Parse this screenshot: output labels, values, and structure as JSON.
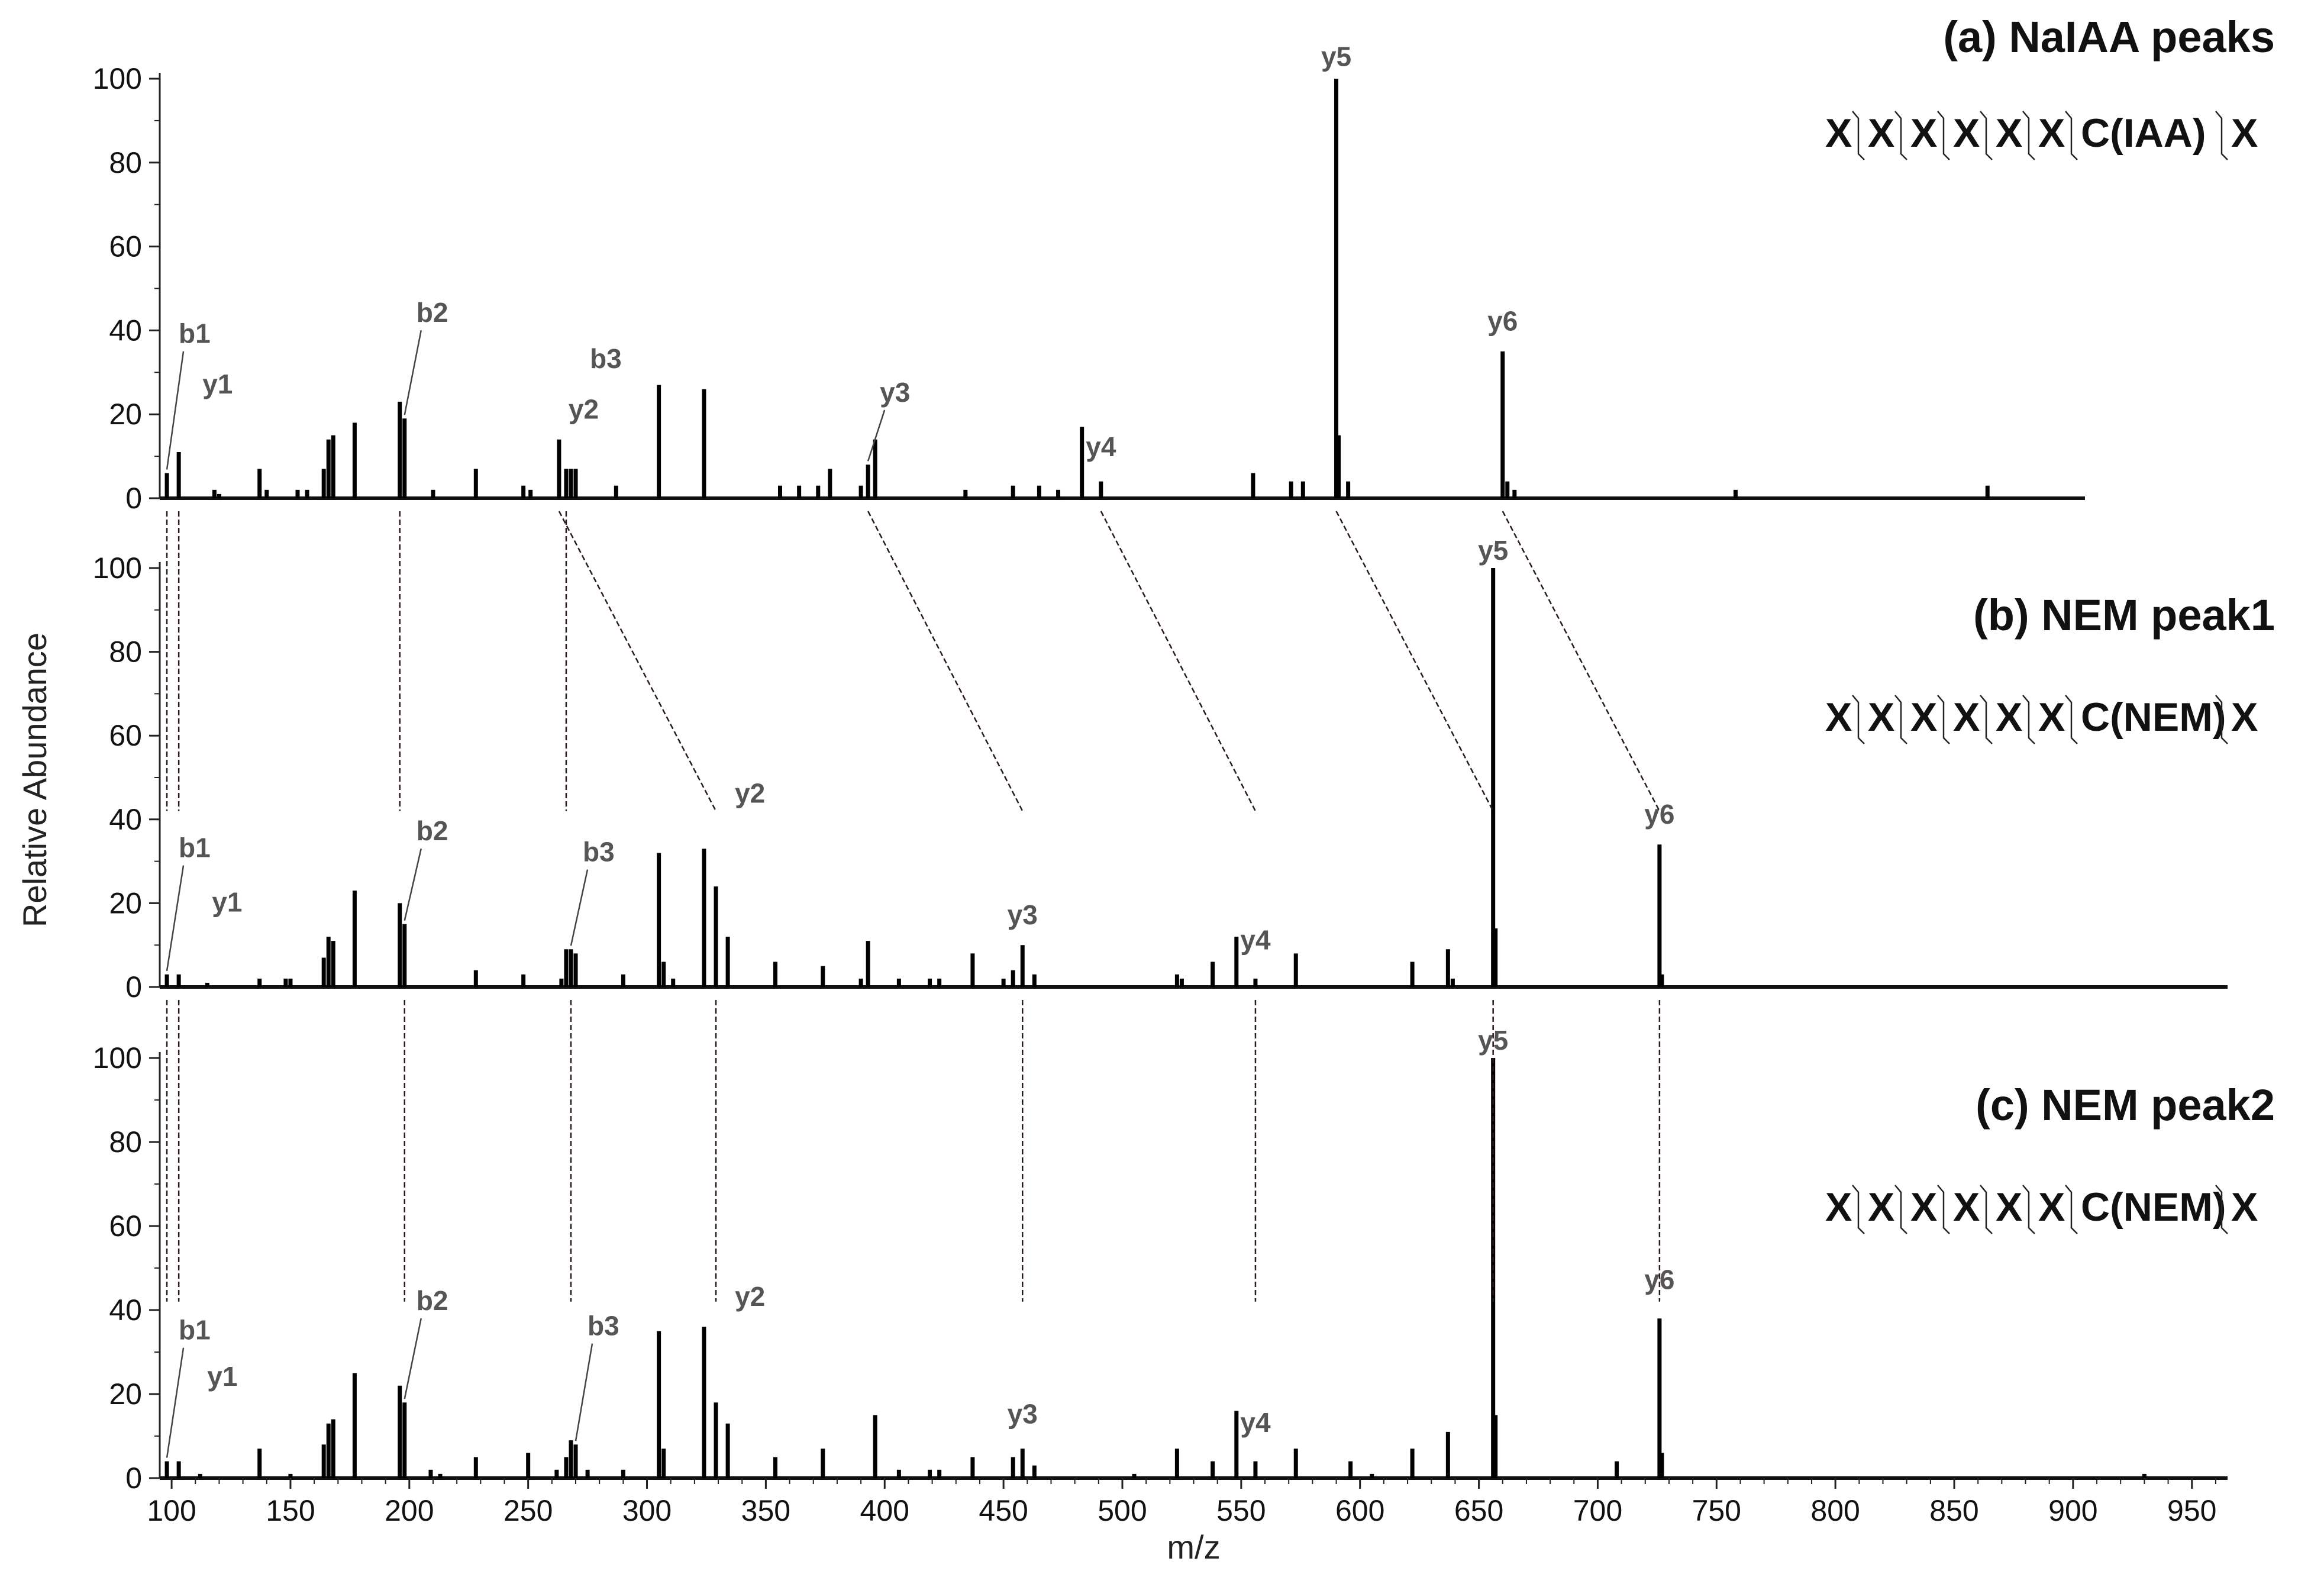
{
  "chart_data": {
    "type": "bar",
    "y_axis_label": "Relative Abundance",
    "x_axis_label": "m/z",
    "xlim": [
      95,
      965
    ],
    "x_ticks": [
      100,
      150,
      200,
      250,
      300,
      350,
      400,
      450,
      500,
      550,
      600,
      650,
      700,
      750,
      800,
      850,
      900,
      950
    ],
    "y_ticks": [
      0,
      20,
      40,
      60,
      80,
      100
    ],
    "ylim": [
      0,
      100
    ],
    "panels": [
      {
        "title": "(a) NaIAA peaks",
        "peptide": [
          "X",
          "X",
          "X",
          "X",
          "X",
          "X",
          "C(IAA)",
          "X"
        ],
        "peaks": [
          [
            98,
            6
          ],
          [
            103,
            11
          ],
          [
            118,
            2
          ],
          [
            120,
            1
          ],
          [
            137,
            7
          ],
          [
            140,
            2
          ],
          [
            153,
            2
          ],
          [
            157,
            2
          ],
          [
            164,
            7
          ],
          [
            166,
            14
          ],
          [
            168,
            15
          ],
          [
            177,
            18
          ],
          [
            196,
            23
          ],
          [
            198,
            19
          ],
          [
            210,
            2
          ],
          [
            228,
            7
          ],
          [
            248,
            3
          ],
          [
            251,
            2
          ],
          [
            263,
            14
          ],
          [
            266,
            7
          ],
          [
            268,
            7
          ],
          [
            270,
            7
          ],
          [
            287,
            3
          ],
          [
            305,
            27
          ],
          [
            324,
            26
          ],
          [
            356,
            3
          ],
          [
            364,
            3
          ],
          [
            372,
            3
          ],
          [
            377,
            7
          ],
          [
            390,
            3
          ],
          [
            393,
            8
          ],
          [
            396,
            14
          ],
          [
            434,
            2
          ],
          [
            454,
            3
          ],
          [
            465,
            3
          ],
          [
            473,
            2
          ],
          [
            483,
            17
          ],
          [
            491,
            4
          ],
          [
            555,
            6
          ],
          [
            571,
            4
          ],
          [
            576,
            4
          ],
          [
            590,
            100
          ],
          [
            591,
            15
          ],
          [
            595,
            4
          ],
          [
            660,
            35
          ],
          [
            662,
            4
          ],
          [
            665,
            2
          ],
          [
            758,
            2
          ],
          [
            864,
            3
          ]
        ],
        "labels": [
          {
            "text": "b1",
            "mz": 98,
            "ytext": 37
          },
          {
            "text": "y1",
            "mz": 108,
            "ytext": 25
          },
          {
            "text": "b2",
            "mz": 198,
            "ytext": 42
          },
          {
            "text": "y2",
            "mz": 262,
            "ytext": 19
          },
          {
            "text": "b3",
            "mz": 271,
            "ytext": 31
          },
          {
            "text": "y3",
            "mz": 393,
            "ytext": 23
          },
          {
            "text": "y4",
            "mz": 491,
            "ytext": 10
          },
          {
            "text": "y5",
            "mz": 590,
            "ytext": 103
          },
          {
            "text": "y6",
            "mz": 660,
            "ytext": 40
          }
        ]
      },
      {
        "title": "(b) NEM peak1",
        "peptide": [
          "X",
          "X",
          "X",
          "X",
          "X",
          "X",
          "C(NEM)",
          "X"
        ],
        "peaks": [
          [
            98,
            3
          ],
          [
            103,
            3
          ],
          [
            115,
            1
          ],
          [
            137,
            2
          ],
          [
            148,
            2
          ],
          [
            150,
            2
          ],
          [
            164,
            7
          ],
          [
            166,
            12
          ],
          [
            168,
            11
          ],
          [
            177,
            23
          ],
          [
            196,
            20
          ],
          [
            198,
            15
          ],
          [
            228,
            4
          ],
          [
            248,
            3
          ],
          [
            264,
            2
          ],
          [
            266,
            9
          ],
          [
            268,
            9
          ],
          [
            270,
            8
          ],
          [
            290,
            3
          ],
          [
            305,
            32
          ],
          [
            307,
            6
          ],
          [
            311,
            2
          ],
          [
            324,
            33
          ],
          [
            329,
            24
          ],
          [
            334,
            12
          ],
          [
            354,
            6
          ],
          [
            374,
            5
          ],
          [
            390,
            2
          ],
          [
            393,
            11
          ],
          [
            406,
            2
          ],
          [
            419,
            2
          ],
          [
            423,
            2
          ],
          [
            437,
            8
          ],
          [
            450,
            2
          ],
          [
            454,
            4
          ],
          [
            458,
            10
          ],
          [
            463,
            3
          ],
          [
            523,
            3
          ],
          [
            525,
            2
          ],
          [
            538,
            6
          ],
          [
            548,
            12
          ],
          [
            556,
            2
          ],
          [
            573,
            8
          ],
          [
            622,
            6
          ],
          [
            637,
            9
          ],
          [
            639,
            2
          ],
          [
            656,
            100
          ],
          [
            657,
            14
          ],
          [
            726,
            34
          ],
          [
            727,
            3
          ]
        ],
        "labels": [
          {
            "text": "b1",
            "mz": 98,
            "ytext": 31
          },
          {
            "text": "y1",
            "mz": 112,
            "ytext": 18
          },
          {
            "text": "b2",
            "mz": 198,
            "ytext": 35
          },
          {
            "text": "b3",
            "mz": 268,
            "ytext": 30
          },
          {
            "text": "y2",
            "mz": 332,
            "ytext": 44
          },
          {
            "text": "y3",
            "mz": 458,
            "ytext": 15
          },
          {
            "text": "y4",
            "mz": 556,
            "ytext": 9
          },
          {
            "text": "y5",
            "mz": 656,
            "ytext": 102
          },
          {
            "text": "y6",
            "mz": 726,
            "ytext": 39
          }
        ]
      },
      {
        "title": "(c) NEM peak2",
        "peptide": [
          "X",
          "X",
          "X",
          "X",
          "X",
          "X",
          "C(NEM)",
          "X"
        ],
        "peaks": [
          [
            98,
            4
          ],
          [
            103,
            4
          ],
          [
            112,
            1
          ],
          [
            137,
            7
          ],
          [
            150,
            1
          ],
          [
            164,
            8
          ],
          [
            166,
            13
          ],
          [
            168,
            14
          ],
          [
            177,
            25
          ],
          [
            196,
            22
          ],
          [
            198,
            18
          ],
          [
            209,
            2
          ],
          [
            213,
            1
          ],
          [
            228,
            5
          ],
          [
            250,
            6
          ],
          [
            262,
            2
          ],
          [
            266,
            5
          ],
          [
            268,
            9
          ],
          [
            270,
            8
          ],
          [
            275,
            2
          ],
          [
            290,
            2
          ],
          [
            305,
            35
          ],
          [
            307,
            7
          ],
          [
            324,
            36
          ],
          [
            329,
            18
          ],
          [
            334,
            13
          ],
          [
            354,
            5
          ],
          [
            374,
            7
          ],
          [
            396,
            15
          ],
          [
            406,
            2
          ],
          [
            419,
            2
          ],
          [
            423,
            2
          ],
          [
            437,
            5
          ],
          [
            454,
            5
          ],
          [
            458,
            7
          ],
          [
            463,
            3
          ],
          [
            505,
            1
          ],
          [
            523,
            7
          ],
          [
            538,
            4
          ],
          [
            548,
            16
          ],
          [
            556,
            4
          ],
          [
            573,
            7
          ],
          [
            596,
            4
          ],
          [
            605,
            1
          ],
          [
            622,
            7
          ],
          [
            637,
            11
          ],
          [
            656,
            100
          ],
          [
            657,
            15
          ],
          [
            708,
            4
          ],
          [
            726,
            38
          ],
          [
            727,
            6
          ],
          [
            930,
            1
          ]
        ],
        "labels": [
          {
            "text": "b1",
            "mz": 98,
            "ytext": 33
          },
          {
            "text": "y1",
            "mz": 110,
            "ytext": 22
          },
          {
            "text": "b2",
            "mz": 198,
            "ytext": 40
          },
          {
            "text": "b3",
            "mz": 270,
            "ytext": 34
          },
          {
            "text": "y2",
            "mz": 332,
            "ytext": 41
          },
          {
            "text": "y3",
            "mz": 458,
            "ytext": 13
          },
          {
            "text": "y4",
            "mz": 556,
            "ytext": 11
          },
          {
            "text": "y5",
            "mz": 656,
            "ytext": 102
          },
          {
            "text": "y6",
            "mz": 726,
            "ytext": 45
          }
        ]
      }
    ],
    "connectors_ab": [
      [
        98,
        98
      ],
      [
        103,
        103
      ],
      [
        196,
        196
      ],
      [
        266,
        266
      ],
      [
        263,
        329
      ],
      [
        393,
        458
      ],
      [
        491,
        556
      ],
      [
        590,
        656
      ],
      [
        660,
        726
      ]
    ],
    "connectors_bc": [
      [
        98,
        98
      ],
      [
        103,
        103
      ],
      [
        198,
        198
      ],
      [
        268,
        268
      ],
      [
        329,
        329
      ],
      [
        458,
        458
      ],
      [
        556,
        556
      ],
      [
        656,
        656
      ],
      [
        726,
        726
      ]
    ]
  }
}
